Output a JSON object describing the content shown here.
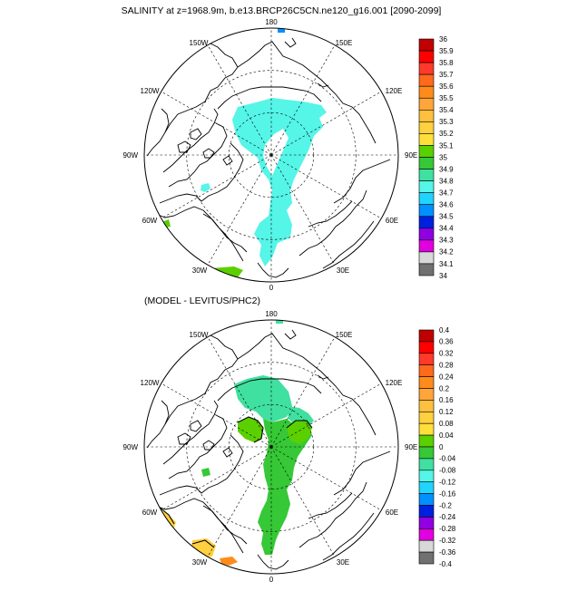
{
  "title": "SALINITY at z=1968.9m, b.e13.BRCP26C5CN.ne120_g16.001 [2090-2099]",
  "panels": [
    {
      "id": "salinity",
      "subtitle": "",
      "lon_labels": [
        "180",
        "150E",
        "120E",
        "90E",
        "60E",
        "30E",
        "0",
        "30W",
        "60W",
        "90W",
        "120W",
        "150W"
      ],
      "colorbar": {
        "labels": [
          "36",
          "35.9",
          "35.8",
          "35.7",
          "35.6",
          "35.5",
          "35.4",
          "35.3",
          "35.2",
          "35.1",
          "35",
          "34.9",
          "34.8",
          "34.7",
          "34.6",
          "34.5",
          "34.4",
          "34.3",
          "34.2",
          "34.1",
          "34"
        ],
        "colors": [
          "#c00000",
          "#ff0000",
          "#ff3a2a",
          "#ff6a1a",
          "#ff8c1a",
          "#ffa53a",
          "#ffbf3f",
          "#ffd040",
          "#ffe03a",
          "#5ad000",
          "#36c836",
          "#40e0a0",
          "#55f5e8",
          "#20d4ff",
          "#0090ff",
          "#0020e0",
          "#9000e0",
          "#e000e0",
          "#d8d8d8",
          "#707070"
        ]
      }
    },
    {
      "id": "difference",
      "subtitle": "(MODEL - LEVITUS/PHC2)",
      "lon_labels": [
        "180",
        "150E",
        "120E",
        "90E",
        "60E",
        "30E",
        "0",
        "30W",
        "60W",
        "90W",
        "120W",
        "150W"
      ],
      "colorbar": {
        "labels": [
          "0.4",
          "0.36",
          "0.32",
          "0.28",
          "0.24",
          "0.2",
          "0.16",
          "0.12",
          "0.08",
          "0.04",
          "0",
          "-0.04",
          "-0.08",
          "-0.12",
          "-0.16",
          "-0.2",
          "-0.24",
          "-0.28",
          "-0.32",
          "-0.36",
          "-0.4"
        ],
        "colors": [
          "#c00000",
          "#ff0000",
          "#ff3a2a",
          "#ff6a1a",
          "#ff8c1a",
          "#ffa53a",
          "#ffbf3f",
          "#ffd040",
          "#ffe03a",
          "#5ad000",
          "#36c836",
          "#40e0a0",
          "#55f5e8",
          "#20d4ff",
          "#0090ff",
          "#0020e0",
          "#9000e0",
          "#e000e0",
          "#d8d8d8",
          "#707070"
        ]
      }
    }
  ]
}
